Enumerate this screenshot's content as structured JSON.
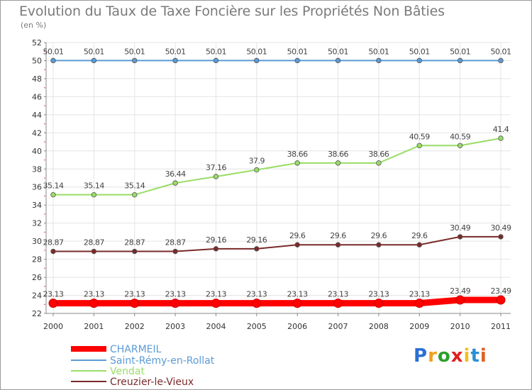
{
  "chart_data": {
    "type": "line",
    "title": "Evolution du Taux de Taxe Foncière sur les Propriétés Non Bâties",
    "subtitle": "(en %)",
    "x": [
      "2000",
      "2001",
      "2002",
      "2003",
      "2004",
      "2005",
      "2006",
      "2007",
      "2008",
      "2009",
      "2010",
      "2011"
    ],
    "ylim": [
      22,
      52
    ],
    "yticks": [
      22,
      24,
      26,
      28,
      30,
      32,
      34,
      36,
      38,
      40,
      42,
      44,
      46,
      48,
      50,
      52
    ],
    "grid": true,
    "legend_position": "bottom-left",
    "series": [
      {
        "name": "CHARMEIL",
        "color": "#ff0000",
        "values": [
          23.13,
          23.13,
          23.13,
          23.13,
          23.13,
          23.13,
          23.13,
          23.13,
          23.13,
          23.13,
          23.49,
          23.49
        ],
        "labels": [
          "23.13",
          "23.13",
          "23.13",
          "23.13",
          "23.13",
          "23.13",
          "23.13",
          "23.13",
          "23.13",
          "23.13",
          "23.49",
          "23.49"
        ]
      },
      {
        "name": "Saint-Rémy-en-Rollat",
        "color": "#5b9bd5",
        "values": [
          50.01,
          50.01,
          50.01,
          50.01,
          50.01,
          50.01,
          50.01,
          50.01,
          50.01,
          50.01,
          50.01,
          50.01
        ],
        "labels": [
          "50.01",
          "50.01",
          "50.01",
          "50.01",
          "50.01",
          "50.01",
          "50.01",
          "50.01",
          "50.01",
          "50.01",
          "50.01",
          "50.01"
        ]
      },
      {
        "name": "Vendat",
        "color": "#99dd66",
        "values": [
          35.14,
          35.14,
          35.14,
          36.44,
          37.16,
          37.9,
          38.66,
          38.66,
          38.66,
          40.59,
          40.59,
          41.4
        ],
        "labels": [
          "35.14",
          "35.14",
          "35.14",
          "36.44",
          "37.16",
          "37.9",
          "38.66",
          "38.66",
          "38.66",
          "40.59",
          "40.59",
          "41.4"
        ]
      },
      {
        "name": "Creuzier-le-Vieux",
        "color": "#7a2a2a",
        "values": [
          28.87,
          28.87,
          28.87,
          28.87,
          29.16,
          29.16,
          29.6,
          29.6,
          29.6,
          29.6,
          30.49,
          30.49
        ],
        "labels": [
          "28.87",
          "28.87",
          "28.87",
          "28.87",
          "29.16",
          "29.16",
          "29.6",
          "29.6",
          "29.6",
          "29.6",
          "30.49",
          "30.49"
        ]
      }
    ]
  },
  "logo": {
    "letters": [
      "P",
      "r",
      "o",
      "x",
      "i",
      "t",
      "i"
    ],
    "colors": [
      "#2a6fd6",
      "#f0a020",
      "#2aa02a",
      "#e02020",
      "#f0c020",
      "#2a8fd6",
      "#e06020"
    ]
  }
}
